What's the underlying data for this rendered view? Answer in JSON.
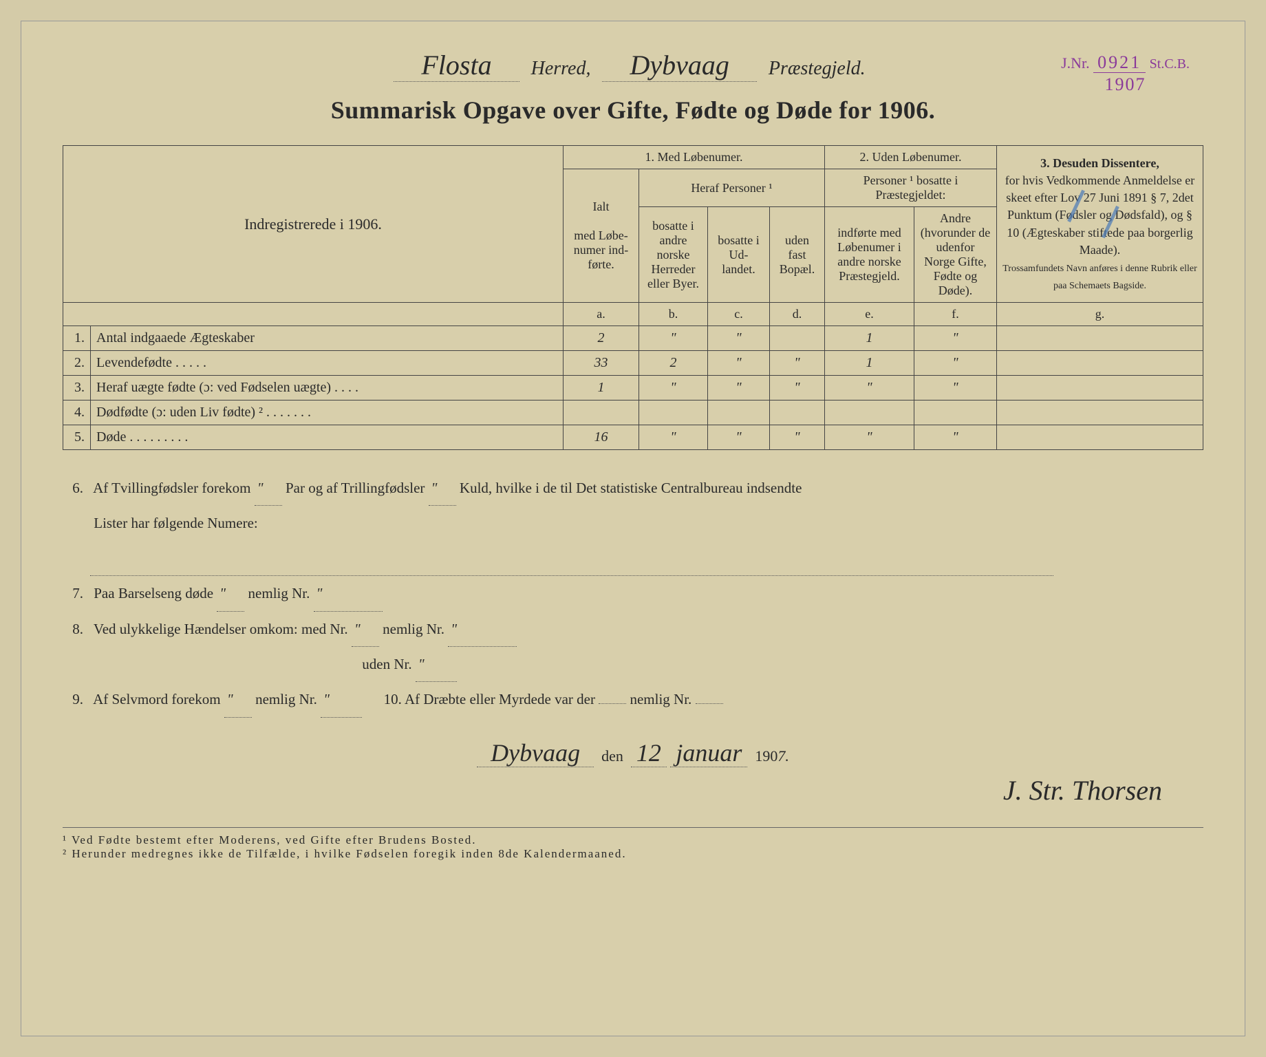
{
  "stamp": {
    "jnr_label": "J.Nr.",
    "number": "0921",
    "stcb": "St.C.B.",
    "year": "1907"
  },
  "header": {
    "herred_value": "Flosta",
    "herred_label": "Herred,",
    "praestegjeld_value": "Dybvaag",
    "praestegjeld_label": "Præstegjeld."
  },
  "title": "Summarisk Opgave over Gifte, Fødte og Døde for 1906.",
  "table": {
    "left_header": "Indregistrerede i 1906.",
    "sec1": "1.  Med Løbenumer.",
    "sec2": "2. Uden Løbenumer.",
    "sec3_title": "3.  Desuden Dissentere,",
    "sec3_body": "for hvis Vedkommende Anmeldelse er skeet efter Lov 27 Juni 1891 § 7, 2det Punktum (Fødsler og Dødsfald), og § 10 (Ægteskaber stiftede paa borgerlig Maade).",
    "sec3_small": "Trossamfundets Navn anføres i denne Rubrik eller paa Schemaets Bagside.",
    "col_a_top": "Ialt",
    "col_a": "med Løbe-numer ind-førte.",
    "heraf": "Heraf Personer ¹",
    "col_b": "bosatte i andre norske Herreder eller Byer.",
    "col_c": "bosatte i Ud-landet.",
    "col_d": "uden fast Bopæl.",
    "sec2_sub": "Personer ¹ bosatte i Præstegjeldet:",
    "col_e": "indførte med Løbenumer i andre norske Præstegjeld.",
    "col_f": "Andre (hvorunder de udenfor Norge Gifte, Fødte og Døde).",
    "letters": [
      "a.",
      "b.",
      "c.",
      "d.",
      "e.",
      "f.",
      "g."
    ],
    "rows": [
      {
        "n": "1.",
        "label": "Antal indgaaede Ægteskaber",
        "a": "2",
        "b": "\"",
        "c": "\"",
        "d": "",
        "e": "1",
        "f": "\"",
        "g": ""
      },
      {
        "n": "2.",
        "label": "Levendefødte . . . . .",
        "a": "33",
        "b": "2",
        "c": "\"",
        "d": "\"",
        "e": "1",
        "f": "\"",
        "g": ""
      },
      {
        "n": "3.",
        "label": "Heraf uægte fødte (ɔ: ved Fødselen uægte) . . . .",
        "a": "1",
        "b": "\"",
        "c": "\"",
        "d": "\"",
        "e": "\"",
        "f": "\"",
        "g": ""
      },
      {
        "n": "4.",
        "label": "Dødfødte (ɔ: uden Liv fødte) ² . . . . . . .",
        "a": "",
        "b": "",
        "c": "",
        "d": "",
        "e": "",
        "f": "",
        "g": ""
      },
      {
        "n": "5.",
        "label": "Døde . . . . . . . . .",
        "a": "16",
        "b": "\"",
        "c": "\"",
        "d": "\"",
        "e": "\"",
        "f": "\"",
        "g": ""
      }
    ]
  },
  "notes": {
    "n6a": "Af Tvillingfødsler forekom",
    "n6b": "Par og af Trillingfødsler",
    "n6c": "Kuld, hvilke i de til Det statistiske Centralbureau indsendte",
    "n6d": "Lister har følgende Numere:",
    "n6_v1": "\"",
    "n6_v2": "\"",
    "n7": "Paa Barselseng døde",
    "n7_v": "\"",
    "n7b": "nemlig Nr.",
    "n7b_v": "\"",
    "n8": "Ved ulykkelige Hændelser omkom:  med Nr.",
    "n8_v": "\"",
    "n8b": "nemlig Nr.",
    "n8b_v": "\"",
    "n8c": "uden Nr.",
    "n8c_v": "\"",
    "n9": "Af Selvmord forekom",
    "n9_v": "\"",
    "n9b": "nemlig Nr.",
    "n9b_v": "\"",
    "n10": "10.   Af Dræbte eller Myrdede var der",
    "n10b": "nemlig Nr.",
    "n10_v": "",
    "n10b_v": ""
  },
  "signature": {
    "place": "Dybvaag",
    "den": "den",
    "day": "12",
    "month": "januar",
    "year_prefix": "190",
    "year_suffix": "7.",
    "name": "J. Str. Thorsen"
  },
  "footnotes": {
    "f1": "¹ Ved Fødte bestemt efter Moderens, ved Gifte efter Brudens Bosted.",
    "f2": "² Herunder medregnes ikke de Tilfælde, i hvilke Fødselen foregik inden 8de Kalendermaaned."
  },
  "colors": {
    "paper": "#d8cfab",
    "ink": "#2a2a2a",
    "stamp": "#8a3a9a",
    "blue_pencil": "#4a7ab8"
  }
}
